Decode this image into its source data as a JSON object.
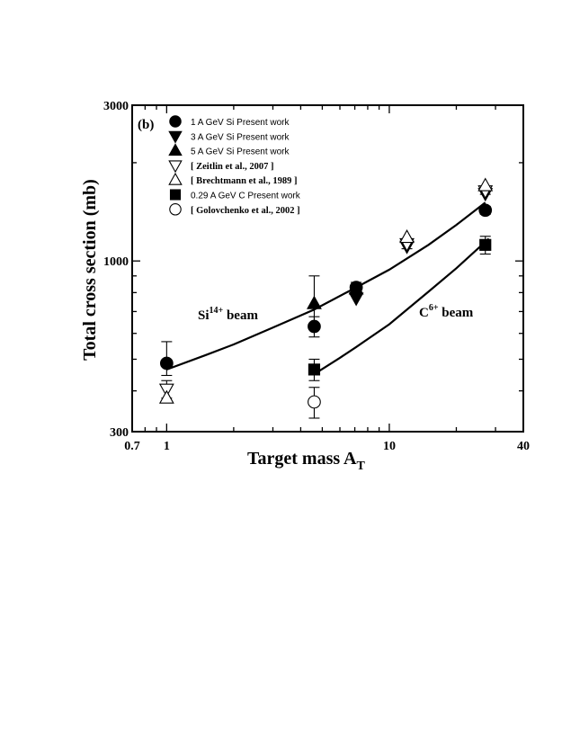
{
  "chart_data": {
    "type": "scatter",
    "panel_label": "(b)",
    "xlabel": "Target mass A",
    "xlabel_sub": "T",
    "ylabel": "Total cross section (mb)",
    "xscale": "log",
    "yscale": "log",
    "xlim": [
      0.7,
      40
    ],
    "ylim": [
      300,
      3000
    ],
    "x_ticks": [
      {
        "value": 0.7,
        "label": "0.7"
      },
      {
        "value": 1,
        "label": "1"
      },
      {
        "value": 10,
        "label": "10"
      },
      {
        "value": 40,
        "label": "40"
      }
    ],
    "y_ticks": [
      {
        "value": 300,
        "label": "300"
      },
      {
        "value": 1000,
        "label": "1000"
      },
      {
        "value": 3000,
        "label": "3000"
      }
    ],
    "legend_position": "top-left",
    "series": [
      {
        "name": "1 A GeV Si Present work",
        "marker": "filled-circle",
        "points": [
          {
            "x": 1,
            "y": 486,
            "yerr": [
              40,
              80
            ]
          },
          {
            "x": 4.6,
            "y": 630,
            "yerr": [
              45,
              45
            ]
          },
          {
            "x": 7.1,
            "y": 830,
            "yerr": [
              30,
              30
            ]
          },
          {
            "x": 27,
            "y": 1430,
            "yerr": [
              40,
              40
            ]
          }
        ]
      },
      {
        "name": "3 A GeV Si Present work",
        "marker": "filled-triangle-down",
        "points": [
          {
            "x": 7.1,
            "y": 770
          },
          {
            "x": 12,
            "y": 1110
          },
          {
            "x": 27,
            "y": 1610
          }
        ]
      },
      {
        "name": "5 A GeV Si Present work",
        "marker": "filled-triangle-up",
        "points": [
          {
            "x": 4.6,
            "y": 740,
            "yerr": [
              120,
              160
            ]
          },
          {
            "x": 7.1,
            "y": 820
          }
        ]
      },
      {
        "name": "[ Zeitlin et al., 2007 ]",
        "marker": "open-triangle-down",
        "points": [
          {
            "x": 1,
            "y": 405,
            "yerr": [
              25,
              25
            ]
          },
          {
            "x": 12,
            "y": 1130,
            "yerr": [
              40,
              40
            ]
          },
          {
            "x": 27,
            "y": 1640,
            "yerr": [
              40,
              40
            ]
          }
        ]
      },
      {
        "name": "[ Brechtmann et al., 1989 ]",
        "marker": "open-triangle-up",
        "points": [
          {
            "x": 1,
            "y": 380
          },
          {
            "x": 12,
            "y": 1180
          },
          {
            "x": 27,
            "y": 1700
          }
        ]
      },
      {
        "name": "0.29 A GeV C Present work",
        "marker": "filled-square",
        "points": [
          {
            "x": 4.6,
            "y": 465,
            "yerr": [
              35,
              35
            ]
          },
          {
            "x": 27,
            "y": 1120,
            "yerr": [
              70,
              70
            ]
          }
        ]
      },
      {
        "name": "[ Golovchenko et al., 2002 ]",
        "marker": "open-circle",
        "points": [
          {
            "x": 4.6,
            "y": 370,
            "yerr": [
              40,
              40
            ]
          }
        ]
      }
    ],
    "curves": [
      {
        "label": "Si",
        "label_sup": "14+",
        "label_suffix": " beam",
        "points": [
          {
            "x": 1,
            "y": 465
          },
          {
            "x": 1.5,
            "y": 515
          },
          {
            "x": 2,
            "y": 555
          },
          {
            "x": 3,
            "y": 625
          },
          {
            "x": 4.6,
            "y": 710
          },
          {
            "x": 7.1,
            "y": 830
          },
          {
            "x": 10,
            "y": 940
          },
          {
            "x": 15,
            "y": 1120
          },
          {
            "x": 20,
            "y": 1290
          },
          {
            "x": 27,
            "y": 1510
          }
        ]
      },
      {
        "label": "C",
        "label_sup": "6+",
        "label_suffix": " beam",
        "points": [
          {
            "x": 4.6,
            "y": 450
          },
          {
            "x": 6,
            "y": 505
          },
          {
            "x": 7.1,
            "y": 545
          },
          {
            "x": 10,
            "y": 640
          },
          {
            "x": 15,
            "y": 805
          },
          {
            "x": 20,
            "y": 950
          },
          {
            "x": 28,
            "y": 1170
          }
        ]
      }
    ]
  }
}
